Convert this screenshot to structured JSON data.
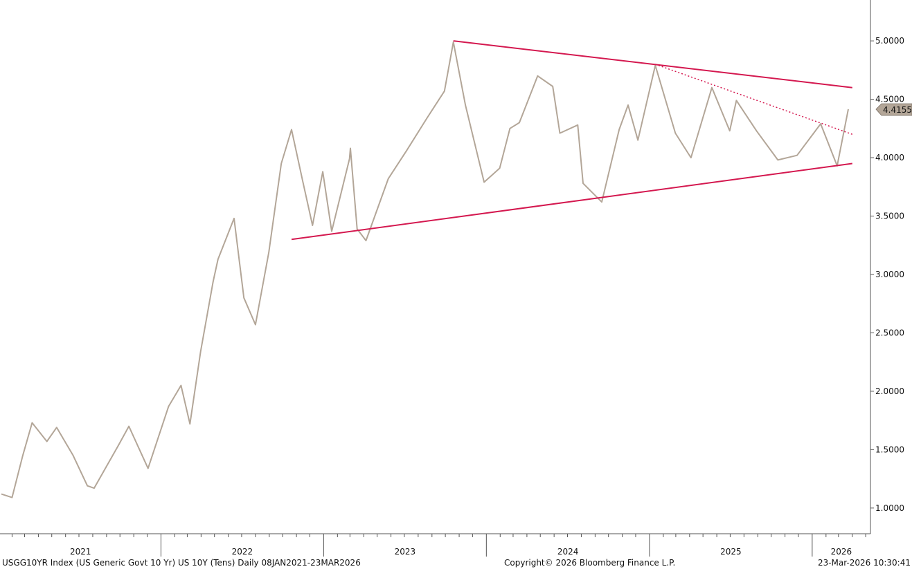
{
  "footer": {
    "description": "USGG10YR Index (US Generic Govt 10 Yr) US 10Y (Tens) Daily 08JAN2021-23MAR2026",
    "copyright": "Copyright© 2026 Bloomberg Finance L.P.",
    "timestamp": "23-Mar-2026 10:30:41"
  },
  "chart_data": {
    "type": "line",
    "title": "",
    "xlabel": "",
    "ylabel": "",
    "y_tick_labels": [
      "1.0000",
      "1.5000",
      "2.0000",
      "2.5000",
      "3.0000",
      "3.5000",
      "4.0000",
      "4.5000",
      "5.0000"
    ],
    "y_ticks": [
      1.0,
      1.5,
      2.0,
      2.5,
      3.0,
      3.5,
      4.0,
      4.5,
      5.0
    ],
    "ylim": [
      0.78,
      5.35
    ],
    "x_tick_labels": [
      "2021",
      "2022",
      "2023",
      "2024",
      "2025",
      "2026"
    ],
    "xlim": [
      "2021-01-08",
      "2026-03-23"
    ],
    "grid": false,
    "last_value_label": "4.4155",
    "colors": {
      "series": "#b3a698",
      "trendline": "#d4184f",
      "last_value_box": "#b3a698"
    },
    "series": [
      {
        "values": [
          [
            "2021-01-08",
            1.12
          ],
          [
            "2021-02-01",
            1.09
          ],
          [
            "2021-02-25",
            1.45
          ],
          [
            "2021-03-18",
            1.73
          ],
          [
            "2021-04-20",
            1.57
          ],
          [
            "2021-05-12",
            1.69
          ],
          [
            "2021-06-18",
            1.45
          ],
          [
            "2021-07-20",
            1.19
          ],
          [
            "2021-08-04",
            1.17
          ],
          [
            "2021-09-28",
            1.54
          ],
          [
            "2021-10-21",
            1.7
          ],
          [
            "2021-12-03",
            1.34
          ],
          [
            "2022-01-18",
            1.87
          ],
          [
            "2022-02-15",
            2.05
          ],
          [
            "2022-03-07",
            1.72
          ],
          [
            "2022-03-31",
            2.34
          ],
          [
            "2022-04-28",
            2.94
          ],
          [
            "2022-05-09",
            3.13
          ],
          [
            "2022-06-14",
            3.48
          ],
          [
            "2022-07-06",
            2.8
          ],
          [
            "2022-08-01",
            2.57
          ],
          [
            "2022-08-31",
            3.19
          ],
          [
            "2022-09-28",
            3.95
          ],
          [
            "2022-10-21",
            4.24
          ],
          [
            "2022-11-15",
            3.8
          ],
          [
            "2022-12-07",
            3.42
          ],
          [
            "2022-12-30",
            3.88
          ],
          [
            "2023-01-19",
            3.37
          ],
          [
            "2023-02-28",
            3.99
          ],
          [
            "2023-03-02",
            4.08
          ],
          [
            "2023-03-17",
            3.39
          ],
          [
            "2023-04-06",
            3.29
          ],
          [
            "2023-05-26",
            3.82
          ],
          [
            "2023-07-06",
            4.06
          ],
          [
            "2023-08-21",
            4.34
          ],
          [
            "2023-09-29",
            4.57
          ],
          [
            "2023-10-19",
            4.99
          ],
          [
            "2023-11-15",
            4.45
          ],
          [
            "2023-12-27",
            3.79
          ],
          [
            "2024-01-31",
            3.91
          ],
          [
            "2024-02-23",
            4.25
          ],
          [
            "2024-03-15",
            4.3
          ],
          [
            "2024-04-25",
            4.7
          ],
          [
            "2024-05-29",
            4.61
          ],
          [
            "2024-06-14",
            4.21
          ],
          [
            "2024-07-24",
            4.28
          ],
          [
            "2024-08-05",
            3.78
          ],
          [
            "2024-09-16",
            3.62
          ],
          [
            "2024-10-25",
            4.24
          ],
          [
            "2024-11-14",
            4.45
          ],
          [
            "2024-12-06",
            4.15
          ],
          [
            "2025-01-14",
            4.79
          ],
          [
            "2025-02-28",
            4.21
          ],
          [
            "2025-04-04",
            4.0
          ],
          [
            "2025-05-21",
            4.6
          ],
          [
            "2025-06-30",
            4.23
          ],
          [
            "2025-07-15",
            4.49
          ],
          [
            "2025-08-29",
            4.23
          ],
          [
            "2025-10-16",
            3.98
          ],
          [
            "2025-11-28",
            4.02
          ],
          [
            "2026-01-20",
            4.29
          ],
          [
            "2026-02-26",
            3.93
          ],
          [
            "2026-03-23",
            4.4155
          ]
        ]
      }
    ],
    "trendlines": [
      {
        "style": "solid",
        "from": [
          "2023-10-19",
          5.0
        ],
        "to": [
          "2026-04-01",
          4.6
        ]
      },
      {
        "style": "solid",
        "from": [
          "2022-10-21",
          3.3
        ],
        "to": [
          "2026-04-01",
          3.95
        ]
      },
      {
        "style": "dotted",
        "from": [
          "2025-01-14",
          4.8
        ],
        "to": [
          "2026-04-01",
          4.2
        ]
      }
    ]
  }
}
